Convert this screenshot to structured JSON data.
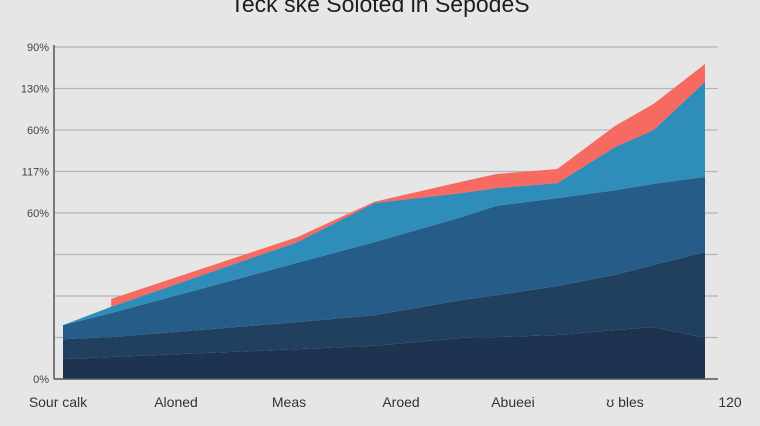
{
  "chart_data": {
    "type": "area",
    "stacked": true,
    "title": "Teck ske Soloted in SepodeS",
    "xlabel": "",
    "ylabel": "",
    "x_tick_labels": [
      "Sour calk",
      "Aloned",
      "Meas",
      "Aroed",
      "Abueei",
      "ʊ bles",
      "120"
    ],
    "y_tick_labels": [
      "0%",
      "",
      "",
      "",
      "60%",
      "117%",
      "60%",
      "130%",
      "90%"
    ],
    "ylim": [
      0,
      8
    ],
    "xlim": [
      0,
      10
    ],
    "grid": true,
    "legend": "none",
    "x": [
      0,
      0.75,
      3.65,
      4.85,
      6.2,
      6.75,
      7.7,
      8.6,
      9.2,
      10
    ],
    "series": [
      {
        "color": "#1e3350",
        "values": [
          0.48,
          0.53,
          0.72,
          0.8,
          0.99,
          1.01,
          1.06,
          1.18,
          1.25,
          0.99
        ]
      },
      {
        "color": "#213f5f",
        "values": [
          0.48,
          0.48,
          0.65,
          0.74,
          0.91,
          1.01,
          1.18,
          1.33,
          1.5,
          2.07
        ]
      },
      {
        "color": "#255d88",
        "values": [
          0.34,
          0.58,
          1.43,
          1.76,
          2.0,
          2.15,
          2.12,
          2.04,
          1.95,
          1.81
        ]
      },
      {
        "color": "#2f8dba",
        "values": [
          0.0,
          0.15,
          0.5,
          0.94,
          0.58,
          0.43,
          0.36,
          1.04,
          1.3,
          2.29
        ]
      },
      {
        "color": "#f76a61",
        "values": [
          null,
          0.19,
          0.12,
          0.03,
          0.27,
          0.34,
          0.34,
          0.51,
          0.63,
          0.43
        ]
      }
    ]
  }
}
